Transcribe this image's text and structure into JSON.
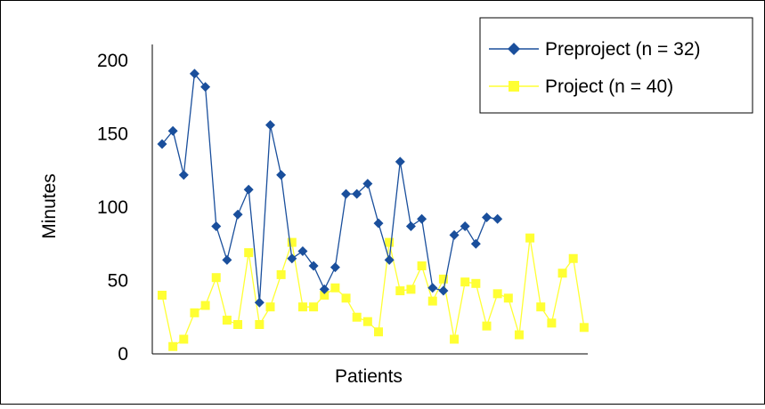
{
  "chart_data": {
    "type": "line",
    "title": "",
    "xlabel": "Patients",
    "ylabel": "Minutes",
    "ylim": [
      0,
      200
    ],
    "yticks": [
      0,
      50,
      100,
      150,
      200
    ],
    "grid": false,
    "legend_position": "top-right",
    "series": [
      {
        "name": "Preproject (n = 32)",
        "color": "#1a4f9c",
        "marker": "diamond",
        "x": [
          1,
          2,
          3,
          4,
          5,
          6,
          7,
          8,
          9,
          10,
          11,
          12,
          13,
          14,
          15,
          16,
          17,
          18,
          19,
          20,
          21,
          22,
          23,
          24,
          25,
          26,
          27,
          28,
          29,
          30,
          31,
          32
        ],
        "values": [
          143,
          152,
          122,
          191,
          182,
          87,
          64,
          95,
          112,
          35,
          156,
          122,
          65,
          70,
          60,
          44,
          59,
          109,
          109,
          116,
          89,
          64,
          131,
          87,
          92,
          45,
          43,
          81,
          87,
          75,
          93,
          92
        ]
      },
      {
        "name": "Project (n = 40)",
        "color": "#ffff33",
        "marker": "square",
        "x": [
          1,
          2,
          3,
          4,
          5,
          6,
          7,
          8,
          9,
          10,
          11,
          12,
          13,
          14,
          15,
          16,
          17,
          18,
          19,
          20,
          21,
          22,
          23,
          24,
          25,
          26,
          27,
          28,
          29,
          30,
          31,
          32,
          33,
          34,
          35,
          36,
          37,
          38,
          39,
          40
        ],
        "values": [
          40,
          5,
          10,
          28,
          33,
          52,
          23,
          20,
          69,
          20,
          32,
          54,
          76,
          32,
          32,
          40,
          45,
          38,
          25,
          22,
          15,
          76,
          43,
          44,
          60,
          36,
          51,
          10,
          49,
          48,
          19,
          41,
          38,
          13,
          79,
          32,
          21,
          55,
          65,
          18
        ]
      }
    ]
  }
}
